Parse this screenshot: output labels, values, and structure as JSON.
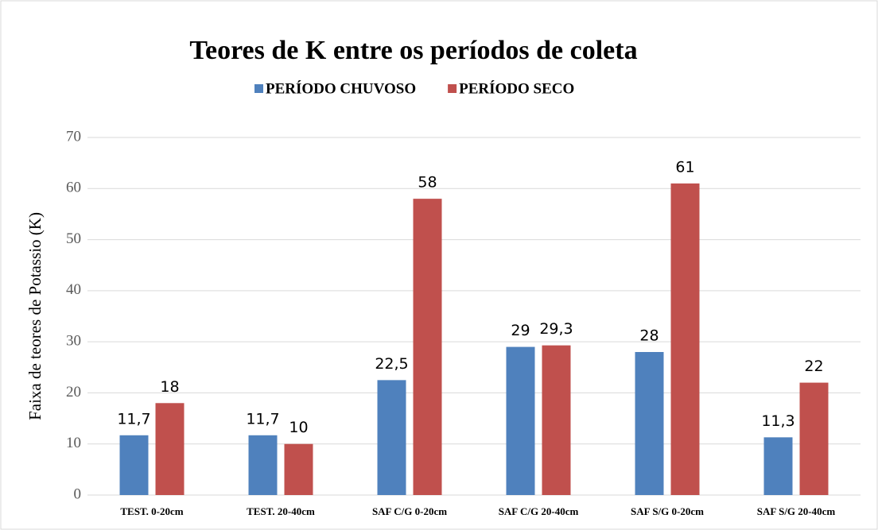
{
  "chart_data": {
    "type": "bar",
    "title": "Teores de K entre os períodos de coleta",
    "y_label": "Faixa de teores de Potassio (K)",
    "categories": [
      "TEST. 0-20cm",
      "TEST. 20-40cm",
      "SAF C/G 0-20cm",
      "SAF C/G 20-40cm",
      "SAF S/G 0-20cm",
      "SAF S/G 20-40cm"
    ],
    "series": [
      {
        "name": "PERÍODO CHUVOSO",
        "color": "#4f81bd",
        "values": [
          11.7,
          11.7,
          22.5,
          29,
          28,
          11.3
        ],
        "value_labels": [
          "11,7",
          "11,7",
          "22,5",
          "29",
          "28",
          "11,3"
        ]
      },
      {
        "name": "PERÍODO SECO",
        "color": "#c0504d",
        "values": [
          18,
          10,
          58,
          29.3,
          61,
          22
        ],
        "value_labels": [
          "18",
          "10",
          "58",
          "29,3",
          "61",
          "22"
        ]
      }
    ],
    "ylim": [
      0,
      70
    ],
    "yticks": [
      0,
      10,
      20,
      30,
      40,
      50,
      60,
      70
    ],
    "grid": true,
    "legend": "top"
  }
}
